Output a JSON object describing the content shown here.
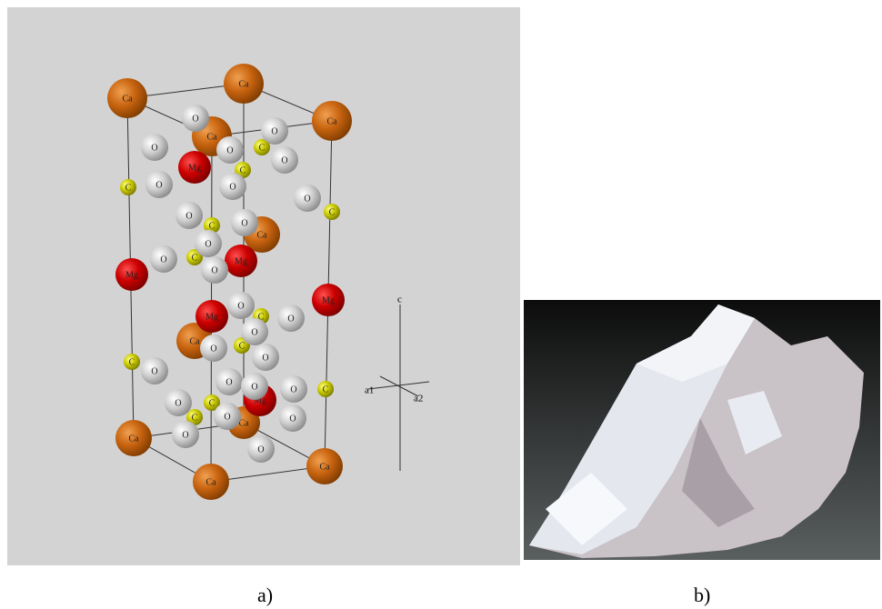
{
  "figure": {
    "panel_a": {
      "caption": "a)",
      "axes": [
        "c",
        "a1",
        "a2"
      ],
      "atoms": [
        "Ca",
        "Ca",
        "Ca",
        "Ca",
        "Ca",
        "Ca",
        "Ca",
        "Ca",
        "Ca",
        "Ca",
        "Mg",
        "Mg",
        "Mg",
        "Mg",
        "Mg",
        "Mg",
        "C",
        "C",
        "C",
        "C",
        "C",
        "C",
        "C",
        "C",
        "C",
        "C",
        "C",
        "C",
        "O",
        "O",
        "O",
        "O",
        "O",
        "O",
        "O",
        "O",
        "O",
        "O",
        "O",
        "O",
        "O",
        "O",
        "O",
        "O",
        "O",
        "O",
        "O",
        "O",
        "O",
        "O",
        "O",
        "O",
        "O",
        "O",
        "O"
      ]
    },
    "panel_b": {
      "caption": "b)"
    }
  }
}
